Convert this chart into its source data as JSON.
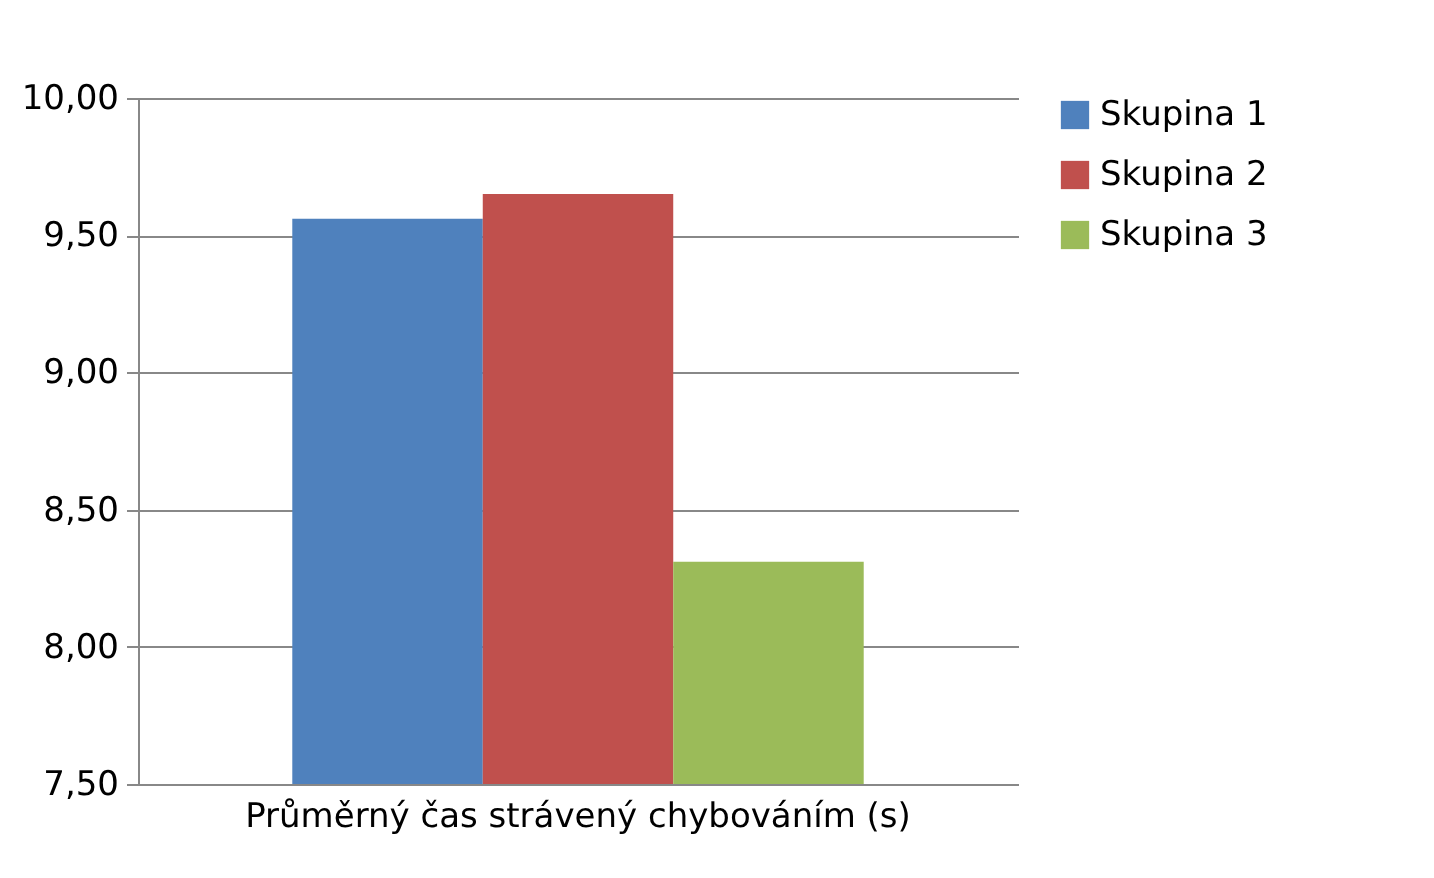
{
  "chart_data": {
    "type": "bar",
    "categories": [
      "Průměrný čas strávený chybováním (s)"
    ],
    "series": [
      {
        "name": "Skupina 1",
        "color": "#4f81bd",
        "values": [
          9.56
        ]
      },
      {
        "name": "Skupina 2",
        "color": "#c0504d",
        "values": [
          9.65
        ]
      },
      {
        "name": "Skupina 3",
        "color": "#9bbb59",
        "values": [
          8.31
        ]
      }
    ],
    "ylim": [
      7.5,
      10
    ],
    "yticks": [
      {
        "value": 7.5,
        "label": "7,50"
      },
      {
        "value": 8,
        "label": "8,00"
      },
      {
        "value": 8.5,
        "label": "8,50"
      },
      {
        "value": 9,
        "label": "9,00"
      },
      {
        "value": 9.5,
        "label": "9,50"
      },
      {
        "value": 10,
        "label": "10,00"
      }
    ],
    "grid": "y",
    "legend": "right"
  }
}
